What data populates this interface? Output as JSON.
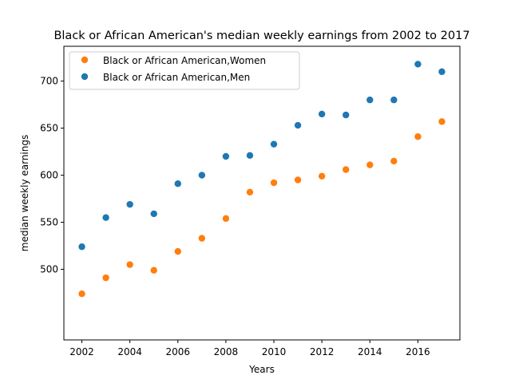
{
  "chart_data": {
    "type": "scatter",
    "title": "Black or African American's median weekly earnings from 2002 to 2017",
    "xlabel": "Years",
    "ylabel": "median weekly earnings",
    "xlim": [
      2001.25,
      2017.75
    ],
    "ylim": [
      425,
      737
    ],
    "x_ticks": [
      2002,
      2004,
      2006,
      2008,
      2010,
      2012,
      2014,
      2016
    ],
    "y_ticks": [
      500,
      550,
      600,
      650,
      700
    ],
    "grid": false,
    "legend_position": "upper-left",
    "series": [
      {
        "name": "Black or African American,Women",
        "color": "#ff7f0e",
        "x": [
          2002,
          2003,
          2004,
          2005,
          2006,
          2007,
          2008,
          2009,
          2010,
          2011,
          2012,
          2013,
          2014,
          2015,
          2016,
          2017
        ],
        "y": [
          474,
          491,
          505,
          499,
          519,
          533,
          554,
          582,
          592,
          595,
          599,
          606,
          611,
          615,
          641,
          657
        ]
      },
      {
        "name": "Black or African American,Men",
        "color": "#1f77b4",
        "x": [
          2002,
          2003,
          2004,
          2005,
          2006,
          2007,
          2008,
          2009,
          2010,
          2011,
          2012,
          2013,
          2014,
          2015,
          2016,
          2017
        ],
        "y": [
          524,
          555,
          569,
          559,
          591,
          600,
          620,
          621,
          633,
          653,
          665,
          664,
          680,
          680,
          718,
          710
        ]
      }
    ]
  }
}
